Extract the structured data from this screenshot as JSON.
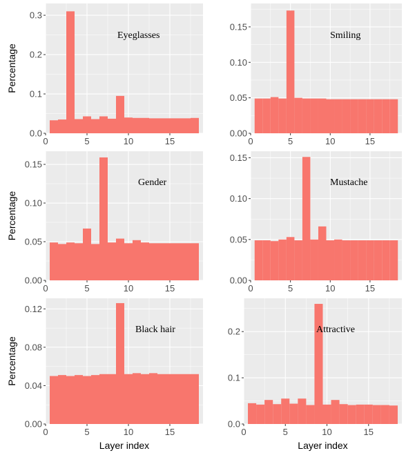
{
  "colors": {
    "bar": "#f8766d",
    "panel_bg": "#ebebeb",
    "grid": "#ffffff",
    "tick": "#4d4d4d"
  },
  "axis_labels": {
    "y": "Percentage",
    "x": "Layer index"
  },
  "chart_data": [
    {
      "type": "bar",
      "annotation": "Eyeglasses",
      "x": [
        1,
        2,
        3,
        4,
        5,
        6,
        7,
        8,
        9,
        10,
        11,
        12,
        13,
        14,
        15,
        16,
        17,
        18
      ],
      "values": [
        0.033,
        0.035,
        0.31,
        0.036,
        0.043,
        0.036,
        0.043,
        0.037,
        0.095,
        0.04,
        0.039,
        0.039,
        0.038,
        0.038,
        0.038,
        0.038,
        0.038,
        0.039
      ],
      "xlim": [
        0,
        19
      ],
      "ylim": [
        0,
        0.33
      ],
      "xticks": [
        0,
        5,
        10,
        15
      ],
      "xtick_labels": [
        "0",
        "5",
        "10",
        "15"
      ],
      "yticks": [
        0,
        0.1,
        0.2,
        0.3
      ],
      "ytick_labels": [
        "0.0",
        "0.1",
        "0.2",
        "0.3"
      ],
      "xlabel": "",
      "ylabel": "Percentage"
    },
    {
      "type": "bar",
      "annotation": "Smiling",
      "x": [
        1,
        2,
        3,
        4,
        5,
        6,
        7,
        8,
        9,
        10,
        11,
        12,
        13,
        14,
        15,
        16,
        17,
        18
      ],
      "values": [
        0.049,
        0.049,
        0.051,
        0.049,
        0.173,
        0.05,
        0.049,
        0.049,
        0.049,
        0.048,
        0.048,
        0.048,
        0.048,
        0.048,
        0.048,
        0.048,
        0.048,
        0.048
      ],
      "xlim": [
        0,
        19
      ],
      "ylim": [
        0,
        0.183
      ],
      "xticks": [
        0,
        5,
        10,
        15
      ],
      "xtick_labels": [
        "0",
        "5",
        "10",
        "15"
      ],
      "yticks": [
        0,
        0.05,
        0.1,
        0.15
      ],
      "ytick_labels": [
        "0.00",
        "0.05",
        "0.10",
        "0.15"
      ],
      "xlabel": "",
      "ylabel": ""
    },
    {
      "type": "bar",
      "annotation": "Gender",
      "x": [
        1,
        2,
        3,
        4,
        5,
        6,
        7,
        8,
        9,
        10,
        11,
        12,
        13,
        14,
        15,
        16,
        17,
        18
      ],
      "values": [
        0.049,
        0.047,
        0.049,
        0.048,
        0.067,
        0.047,
        0.159,
        0.049,
        0.054,
        0.048,
        0.052,
        0.049,
        0.048,
        0.048,
        0.048,
        0.048,
        0.048,
        0.048
      ],
      "xlim": [
        0,
        19
      ],
      "ylim": [
        0,
        0.167
      ],
      "xticks": [
        0,
        5,
        10,
        15
      ],
      "xtick_labels": [
        "0",
        "5",
        "10",
        "15"
      ],
      "yticks": [
        0,
        0.05,
        0.1,
        0.15
      ],
      "ytick_labels": [
        "0.00",
        "0.05",
        "0.10",
        "0.15"
      ],
      "xlabel": "",
      "ylabel": "Percentage"
    },
    {
      "type": "bar",
      "annotation": "Mustache",
      "x": [
        1,
        2,
        3,
        4,
        5,
        6,
        7,
        8,
        9,
        10,
        11,
        12,
        13,
        14,
        15,
        16,
        17,
        18
      ],
      "values": [
        0.049,
        0.049,
        0.048,
        0.05,
        0.053,
        0.049,
        0.151,
        0.05,
        0.066,
        0.049,
        0.05,
        0.049,
        0.049,
        0.049,
        0.049,
        0.049,
        0.049,
        0.049
      ],
      "xlim": [
        0,
        19
      ],
      "ylim": [
        0,
        0.158
      ],
      "xticks": [
        0,
        5,
        10,
        15
      ],
      "xtick_labels": [
        "0",
        "5",
        "10",
        "15"
      ],
      "yticks": [
        0,
        0.05,
        0.1,
        0.15
      ],
      "ytick_labels": [
        "0.00",
        "0.05",
        "0.10",
        "0.15"
      ],
      "xlabel": "",
      "ylabel": ""
    },
    {
      "type": "bar",
      "annotation": "Black hair",
      "x": [
        1,
        2,
        3,
        4,
        5,
        6,
        7,
        8,
        9,
        10,
        11,
        12,
        13,
        14,
        15,
        16,
        17,
        18
      ],
      "values": [
        0.05,
        0.051,
        0.05,
        0.051,
        0.05,
        0.051,
        0.052,
        0.052,
        0.126,
        0.052,
        0.053,
        0.052,
        0.053,
        0.052,
        0.052,
        0.052,
        0.052,
        0.052
      ],
      "xlim": [
        0,
        19
      ],
      "ylim": [
        0,
        0.131
      ],
      "xticks": [
        0,
        5,
        10,
        15
      ],
      "xtick_labels": [
        "0",
        "5",
        "10",
        "15"
      ],
      "yticks": [
        0,
        0.04,
        0.08,
        0.12
      ],
      "ytick_labels": [
        "0.00",
        "0.04",
        "0.08",
        "0.12"
      ],
      "xlabel": "Layer index",
      "ylabel": "Percentage"
    },
    {
      "type": "bar",
      "annotation": "Attractive",
      "x": [
        1,
        2,
        3,
        4,
        5,
        6,
        7,
        8,
        9,
        10,
        11,
        12,
        13,
        14,
        15,
        16,
        17,
        18
      ],
      "values": [
        0.045,
        0.042,
        0.052,
        0.043,
        0.055,
        0.044,
        0.055,
        0.041,
        0.26,
        0.042,
        0.052,
        0.043,
        0.041,
        0.042,
        0.042,
        0.041,
        0.041,
        0.04
      ],
      "xlim": [
        0,
        19
      ],
      "ylim": [
        0,
        0.272
      ],
      "xticks": [
        0,
        5,
        10,
        15
      ],
      "xtick_labels": [
        "0",
        "5",
        "10",
        "15"
      ],
      "yticks": [
        0,
        0.1,
        0.2
      ],
      "ytick_labels": [
        "0.0",
        "0.1",
        "0.2"
      ],
      "xlabel": "Layer index",
      "ylabel": ""
    }
  ]
}
